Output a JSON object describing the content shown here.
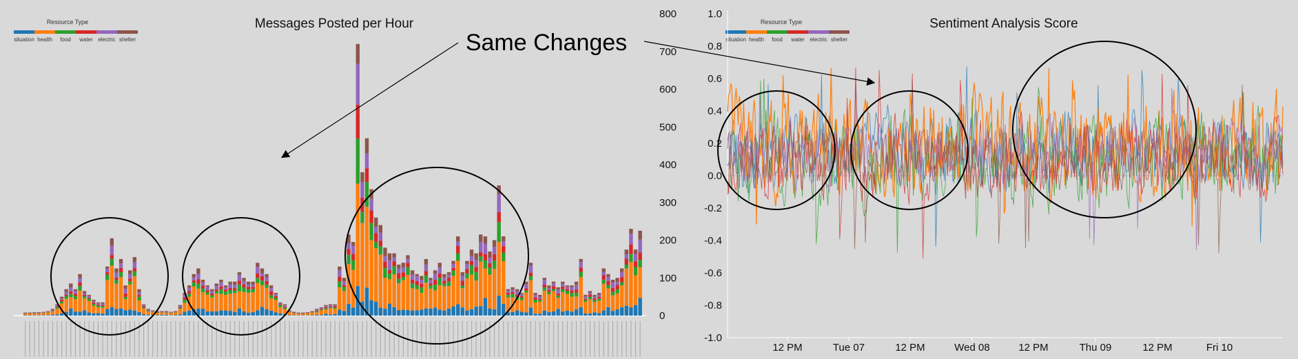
{
  "left_chart": {
    "title": "Messages Posted per Hour",
    "legend_title": "Resource Type",
    "y_ticks": [
      "800",
      "700",
      "600",
      "500",
      "400",
      "300",
      "200",
      "100",
      "0"
    ]
  },
  "right_chart": {
    "title": "Sentiment Analysis Score",
    "legend_title": "Resource Type",
    "y_ticks": [
      "1.0",
      "0.8",
      "0.6",
      "0.4",
      "0.2",
      "0.0",
      "-0.2",
      "-0.4",
      "-0.6",
      "-0.8",
      "-1.0"
    ],
    "x_ticks": [
      "12 PM",
      "Tue 07",
      "12 PM",
      "Wed 08",
      "12 PM",
      "Thu 09",
      "12 PM",
      "Fri 10"
    ]
  },
  "callout": {
    "text": "Same Changes"
  },
  "colors": {
    "situation": "#1f77b4",
    "health": "#ff7f0e",
    "food": "#2ca02c",
    "water": "#d62728",
    "electric": "#9467bd",
    "shelter": "#8c564b"
  },
  "chart_data": [
    {
      "type": "bar",
      "stacked": true,
      "title": "Messages Posted per Hour",
      "ylabel": "",
      "ylim": [
        0,
        800
      ],
      "grid": false,
      "legend_position": "top-left",
      "legend_title": "Resource Type",
      "series_names": [
        "situation",
        "health",
        "food",
        "water",
        "electric",
        "shelter"
      ],
      "totals": [
        8,
        8,
        9,
        9,
        10,
        12,
        18,
        30,
        50,
        70,
        85,
        70,
        110,
        65,
        55,
        42,
        35,
        35,
        130,
        205,
        125,
        150,
        80,
        120,
        155,
        70,
        30,
        18,
        14,
        12,
        12,
        12,
        10,
        12,
        28,
        60,
        80,
        110,
        125,
        95,
        80,
        70,
        85,
        95,
        80,
        90,
        90,
        115,
        100,
        90,
        90,
        140,
        125,
        110,
        80,
        60,
        35,
        30,
        14,
        10,
        8,
        8,
        9,
        12,
        18,
        22,
        28,
        30,
        30,
        130,
        100,
        215,
        195,
        720,
        380,
        470,
        335,
        260,
        240,
        180,
        165,
        165,
        135,
        140,
        160,
        120,
        110,
        105,
        150,
        100,
        120,
        140,
        110,
        115,
        145,
        210,
        115,
        145,
        175,
        165,
        215,
        210,
        170,
        200,
        345,
        210,
        70,
        75,
        70,
        60,
        90,
        140,
        60,
        55,
        100,
        80,
        90,
        75,
        90,
        80,
        80,
        90,
        150,
        55,
        65,
        55,
        60,
        125,
        110,
        95,
        100,
        125,
        175,
        230,
        175,
        225
      ],
      "proportions": [
        0.14,
        0.5,
        0.1,
        0.08,
        0.1,
        0.08
      ],
      "x_category_labels_legible": false,
      "annotations": [
        "Same Changes"
      ]
    },
    {
      "type": "line",
      "title": "Sentiment Analysis Score",
      "ylabel": "",
      "ylim": [
        -1.0,
        1.0
      ],
      "grid": false,
      "legend_position": "top-left",
      "legend_title": "Resource Type",
      "x_ticks": [
        "12 PM",
        "Tue 07",
        "12 PM",
        "Wed 08",
        "12 PM",
        "Thu 09",
        "12 PM",
        "Fri 10"
      ],
      "series_names": [
        "situation",
        "health",
        "food",
        "water",
        "electric",
        "shelter"
      ],
      "series_band": [
        {
          "name": "situation",
          "center": 0.15,
          "amplitude": 0.35
        },
        {
          "name": "health",
          "center": 0.2,
          "amplitude": 0.45
        },
        {
          "name": "food",
          "center": 0.1,
          "amplitude": 0.4
        },
        {
          "name": "water",
          "center": 0.1,
          "amplitude": 0.35
        },
        {
          "name": "electric",
          "center": 0.15,
          "amplitude": 0.3
        },
        {
          "name": "shelter",
          "center": 0.1,
          "amplitude": 0.25
        }
      ],
      "annotations": [
        "Same Changes"
      ]
    }
  ]
}
